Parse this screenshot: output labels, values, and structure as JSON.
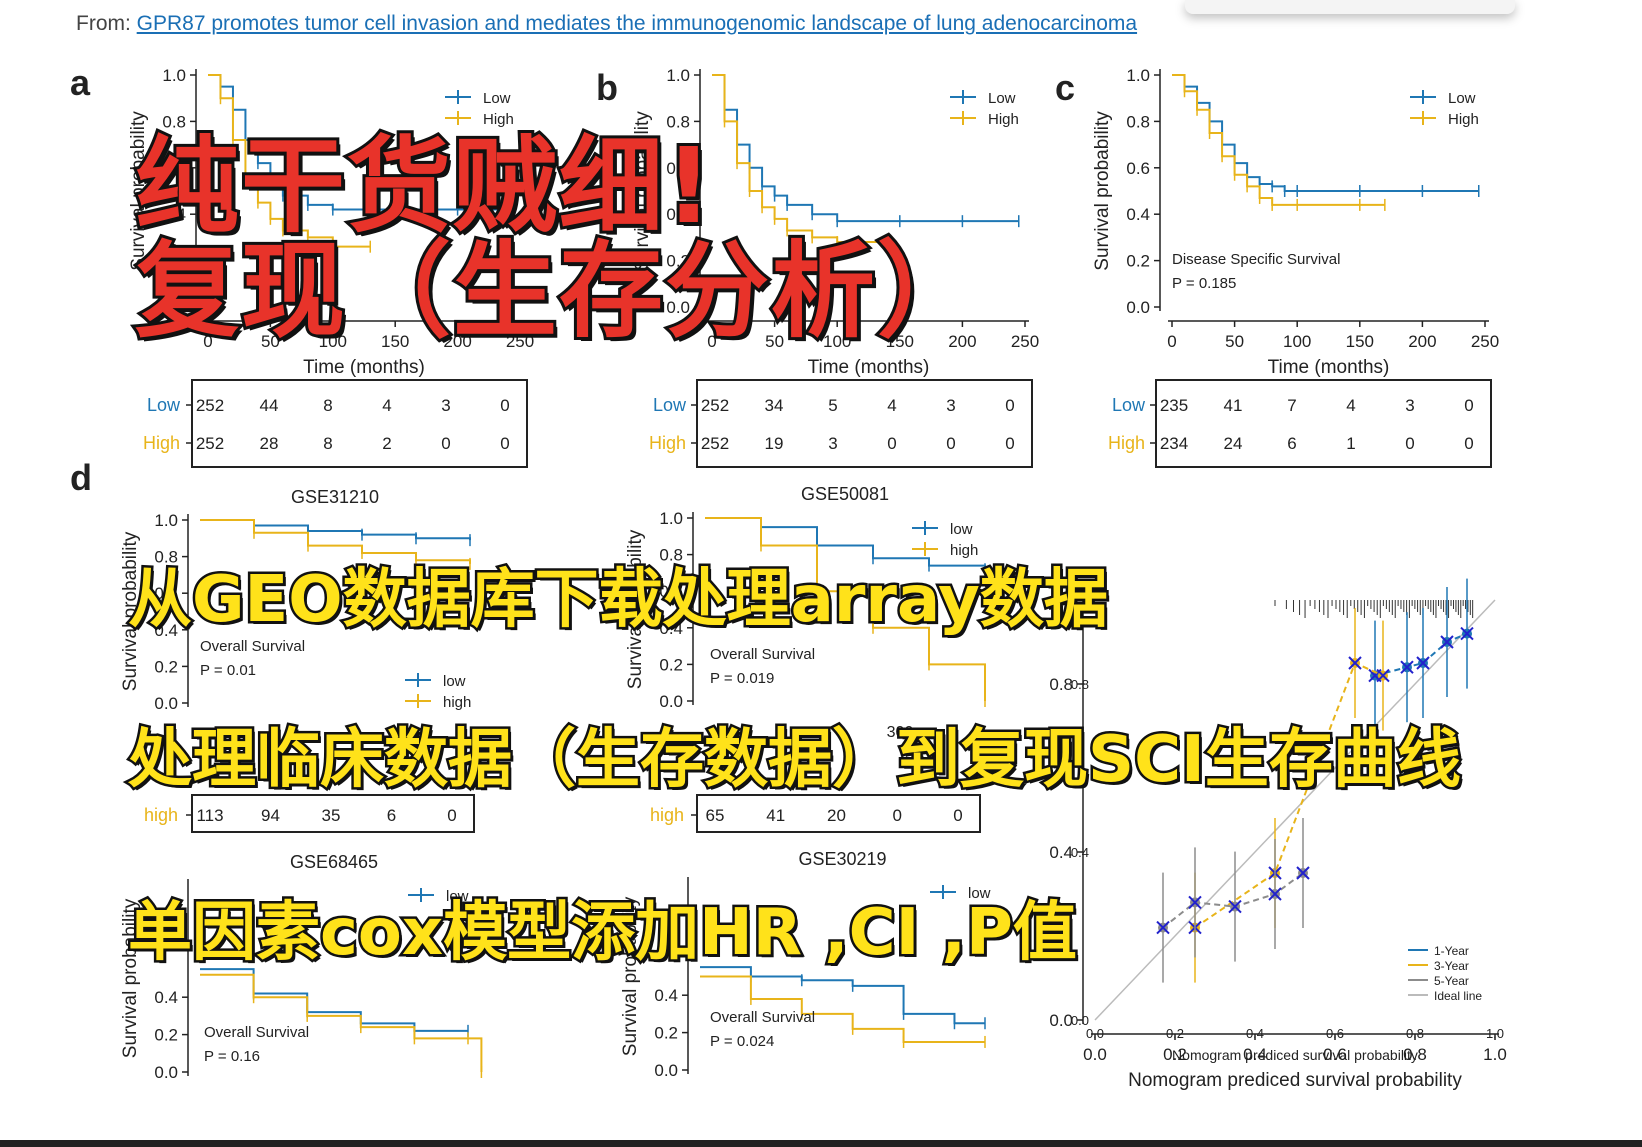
{
  "source": {
    "prefix": "From:",
    "link_text": "GPR87 promotes tumor cell invasion and mediates the immunogenomic landscape of lung adenocarcinoma"
  },
  "colors": {
    "low": "#1f77b4",
    "high": "#e8b41a",
    "year1": "#1f77b4",
    "year3": "#e8b41a",
    "year5": "#8c8c8c",
    "ideal": "#bbbbbb",
    "x_marker": "#2222cc",
    "red_title": "#e8332a",
    "yellow_title": "#ffe21a"
  },
  "overlay": {
    "red_line1": "纯干货贼细!",
    "red_line2": "复现（生存分析）",
    "yellow_line1": "从GEO数据库下载处理array数据",
    "yellow_line2": "处理临床数据（生存数据）到复现SCI生存曲线",
    "yellow_line3": "单因素cox模型添加HR ,CI ,P值"
  },
  "chart_data": [
    {
      "panel_letter": "a",
      "type": "line",
      "title": "",
      "xlabel": "Time (months)",
      "ylabel": "Survival probability",
      "xlim": [
        0,
        250
      ],
      "ylim": [
        0,
        1
      ],
      "x_ticks": [
        "0",
        "50",
        "100",
        "150",
        "200",
        "250"
      ],
      "y_ticks": [
        "0.0",
        "0.2",
        "0.4",
        "0.6",
        "0.8",
        "1.0"
      ],
      "legend": [
        "Low",
        "High"
      ],
      "series": [
        {
          "name": "Low",
          "x": [
            0,
            10,
            20,
            30,
            40,
            50,
            60,
            80,
            100,
            150,
            200,
            245
          ],
          "y": [
            1.0,
            0.95,
            0.85,
            0.72,
            0.62,
            0.55,
            0.48,
            0.44,
            0.42,
            0.42,
            0.42,
            0.42
          ]
        },
        {
          "name": "High",
          "x": [
            0,
            10,
            20,
            30,
            40,
            50,
            60,
            80,
            100,
            130
          ],
          "y": [
            1.0,
            0.9,
            0.72,
            0.55,
            0.45,
            0.38,
            0.33,
            0.3,
            0.26,
            0.26
          ]
        }
      ],
      "risk_table": {
        "rows": [
          "Low",
          "High"
        ],
        "values": [
          [
            "252",
            "44",
            "8",
            "4",
            "3",
            "0"
          ],
          [
            "252",
            "28",
            "8",
            "2",
            "0",
            "0"
          ]
        ]
      }
    },
    {
      "panel_letter": "b",
      "type": "line",
      "title": "",
      "xlabel": "Time (months)",
      "ylabel": "Survival probability",
      "xlim": [
        0,
        250
      ],
      "ylim": [
        0,
        1
      ],
      "x_ticks": [
        "0",
        "50",
        "100",
        "150",
        "200",
        "250"
      ],
      "y_ticks": [
        "0.0",
        "0.2",
        "0.4",
        "0.6",
        "0.8",
        "1.0"
      ],
      "legend": [
        "Low",
        "High"
      ],
      "series": [
        {
          "name": "Low",
          "x": [
            0,
            10,
            20,
            30,
            40,
            50,
            60,
            80,
            100,
            150,
            200,
            245
          ],
          "y": [
            1.0,
            0.85,
            0.7,
            0.6,
            0.52,
            0.48,
            0.44,
            0.4,
            0.37,
            0.37,
            0.37,
            0.37
          ]
        },
        {
          "name": "High",
          "x": [
            0,
            10,
            20,
            30,
            40,
            50,
            60,
            80,
            100,
            140
          ],
          "y": [
            1.0,
            0.8,
            0.62,
            0.5,
            0.43,
            0.38,
            0.33,
            0.3,
            0.28,
            0.28
          ]
        }
      ],
      "risk_table": {
        "rows": [
          "Low",
          "High"
        ],
        "values": [
          [
            "252",
            "34",
            "5",
            "4",
            "3",
            "0"
          ],
          [
            "252",
            "19",
            "3",
            "0",
            "0",
            "0"
          ]
        ]
      }
    },
    {
      "panel_letter": "c",
      "type": "line",
      "title": "",
      "xlabel": "Time (months)",
      "ylabel": "Survival probability",
      "xlim": [
        0,
        250
      ],
      "ylim": [
        0,
        1
      ],
      "x_ticks": [
        "0",
        "50",
        "100",
        "150",
        "200",
        "250"
      ],
      "y_ticks": [
        "0.0",
        "0.2",
        "0.4",
        "0.6",
        "0.8",
        "1.0"
      ],
      "legend": [
        "Low",
        "High"
      ],
      "annotation": "Disease Specific Survival",
      "p_value": "P = 0.185",
      "series": [
        {
          "name": "Low",
          "x": [
            0,
            10,
            20,
            30,
            40,
            50,
            60,
            70,
            80,
            90,
            100,
            150,
            200,
            245
          ],
          "y": [
            1.0,
            0.95,
            0.88,
            0.8,
            0.7,
            0.62,
            0.56,
            0.53,
            0.52,
            0.5,
            0.5,
            0.5,
            0.5,
            0.5
          ]
        },
        {
          "name": "High",
          "x": [
            0,
            10,
            20,
            30,
            40,
            50,
            60,
            70,
            80,
            100,
            150,
            170
          ],
          "y": [
            1.0,
            0.93,
            0.85,
            0.75,
            0.65,
            0.57,
            0.52,
            0.47,
            0.44,
            0.44,
            0.44,
            0.44
          ]
        }
      ],
      "risk_table": {
        "rows": [
          "Low",
          "High"
        ],
        "values": [
          [
            "235",
            "41",
            "7",
            "4",
            "3",
            "0"
          ],
          [
            "234",
            "24",
            "6",
            "1",
            "0",
            "0"
          ]
        ]
      }
    },
    {
      "panel_letter": "d",
      "type": "line",
      "title": "GSE31210",
      "ylabel": "Survival probability",
      "ylim": [
        0,
        1
      ],
      "y_ticks": [
        "0.0",
        "0.2",
        "0.4",
        "0.6",
        "0.8",
        "1.0"
      ],
      "legend": [
        "low",
        "high"
      ],
      "annotation": "Overall Survival",
      "p_value": "P = 0.01",
      "series": [
        {
          "name": "low",
          "x": [
            0,
            20,
            40,
            60,
            80,
            100
          ],
          "y": [
            1.0,
            0.97,
            0.94,
            0.92,
            0.9,
            0.89
          ]
        },
        {
          "name": "high",
          "x": [
            0,
            20,
            40,
            60,
            80,
            100
          ],
          "y": [
            1.0,
            0.93,
            0.86,
            0.82,
            0.78,
            0.76
          ]
        }
      ],
      "risk_table": {
        "rows": [
          "high"
        ],
        "values": [
          [
            "113",
            "94",
            "35",
            "6",
            "0"
          ]
        ]
      }
    },
    {
      "type": "line",
      "title": "GSE50081",
      "ylabel": "Survival probability",
      "ylim": [
        0,
        1
      ],
      "y_ticks": [
        "0.0",
        "0.2",
        "0.4",
        "0.6",
        "0.8",
        "1.0"
      ],
      "x_ticks": [
        "300"
      ],
      "legend": [
        "low",
        "high"
      ],
      "annotation": "Overall Survival",
      "p_value": "P = 0.019",
      "series": [
        {
          "name": "low",
          "x": [
            0,
            20,
            40,
            60,
            80,
            100
          ],
          "y": [
            1.0,
            0.95,
            0.85,
            0.78,
            0.74,
            0.72
          ]
        },
        {
          "name": "high",
          "x": [
            0,
            20,
            40,
            60,
            80,
            100
          ],
          "y": [
            1.0,
            0.85,
            0.6,
            0.4,
            0.2,
            0.0
          ]
        }
      ],
      "risk_table": {
        "rows": [
          "high"
        ],
        "values": [
          [
            "65",
            "41",
            "20",
            "0",
            "0"
          ]
        ]
      }
    },
    {
      "type": "line",
      "title": "GSE68465",
      "ylabel": "Survival probability",
      "ylim": [
        0,
        1
      ],
      "y_ticks": [
        "0.0",
        "0.2",
        "0.4"
      ],
      "legend": [
        "low"
      ],
      "annotation": "Overall Survival",
      "p_value": "P = 0.16",
      "series": [
        {
          "name": "low",
          "x": [
            0,
            40,
            80,
            120,
            160,
            200
          ],
          "y": [
            0.55,
            0.42,
            0.32,
            0.26,
            0.22,
            0.22
          ]
        },
        {
          "name": "high",
          "x": [
            0,
            40,
            80,
            120,
            160,
            200,
            210
          ],
          "y": [
            0.52,
            0.4,
            0.3,
            0.24,
            0.18,
            0.18,
            0.0
          ]
        }
      ]
    },
    {
      "type": "line",
      "title": "GSE30219",
      "ylabel": "Survival probability",
      "ylim": [
        0,
        1
      ],
      "y_ticks": [
        "0.0",
        "0.2",
        "0.4"
      ],
      "legend": [
        "low"
      ],
      "annotation": "Overall Survival",
      "p_value": "P = 0.024",
      "series": [
        {
          "name": "low",
          "x": [
            0,
            50,
            100,
            150,
            200,
            250,
            280
          ],
          "y": [
            0.55,
            0.5,
            0.48,
            0.45,
            0.3,
            0.25,
            0.25
          ]
        },
        {
          "name": "high",
          "x": [
            0,
            50,
            100,
            150,
            200,
            280
          ],
          "y": [
            0.5,
            0.38,
            0.3,
            0.22,
            0.15,
            0.15
          ]
        }
      ]
    },
    {
      "type": "scatter",
      "title": "",
      "xlabel": "Nomogram prediced survival probability",
      "xlim": [
        0,
        1
      ],
      "ylim": [
        0,
        1
      ],
      "x_ticks": [
        "0.0",
        "0.2",
        "0.4",
        "0.6",
        "0.8",
        "1.0"
      ],
      "y_ticks": [
        "0.0",
        "0.4",
        "0.8"
      ],
      "legend": [
        "1-Year",
        "3-Year",
        "5-Year",
        "Ideal line"
      ],
      "series": [
        {
          "name": "1-Year",
          "x": [
            0.7,
            0.78,
            0.82,
            0.88,
            0.93
          ],
          "y": [
            0.82,
            0.84,
            0.85,
            0.9,
            0.92
          ]
        },
        {
          "name": "3-Year",
          "x": [
            0.25,
            0.45,
            0.65,
            0.72
          ],
          "y": [
            0.22,
            0.35,
            0.85,
            0.82
          ]
        },
        {
          "name": "5-Year",
          "x": [
            0.17,
            0.25,
            0.35,
            0.45,
            0.52
          ],
          "y": [
            0.22,
            0.28,
            0.27,
            0.3,
            0.35
          ]
        }
      ]
    }
  ]
}
